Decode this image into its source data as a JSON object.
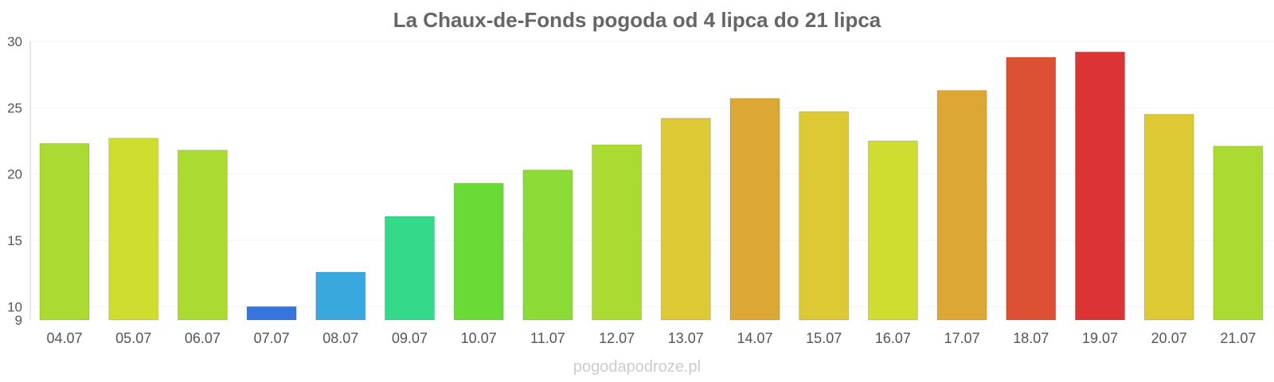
{
  "chart_data": {
    "type": "bar",
    "title": "La Chaux-de-Fonds pogoda od 4 lipca do 21 lipca",
    "xlabel": "",
    "ylabel": "",
    "ylim": [
      9,
      30
    ],
    "yticks": [
      9,
      10,
      15,
      20,
      25,
      30
    ],
    "grid": true,
    "categories": [
      "04.07",
      "05.07",
      "06.07",
      "07.07",
      "08.07",
      "09.07",
      "10.07",
      "11.07",
      "12.07",
      "13.07",
      "14.07",
      "15.07",
      "16.07",
      "17.07",
      "18.07",
      "19.07",
      "20.07",
      "21.07"
    ],
    "values": [
      22.3,
      22.7,
      21.8,
      10.0,
      12.6,
      16.8,
      19.3,
      20.3,
      22.2,
      24.2,
      25.7,
      24.7,
      22.5,
      26.3,
      28.8,
      29.2,
      24.5,
      22.1
    ],
    "colors": [
      "#abdb32",
      "#cfdd31",
      "#abdb32",
      "#3675de",
      "#38a8de",
      "#34d98a",
      "#6adb36",
      "#8ddb36",
      "#abdb32",
      "#dcc934",
      "#dca735",
      "#dcc934",
      "#cfdd31",
      "#dca735",
      "#dc5034",
      "#dc3434",
      "#dcc934",
      "#abdb32"
    ]
  },
  "watermark": "pogodapodroze.pl"
}
